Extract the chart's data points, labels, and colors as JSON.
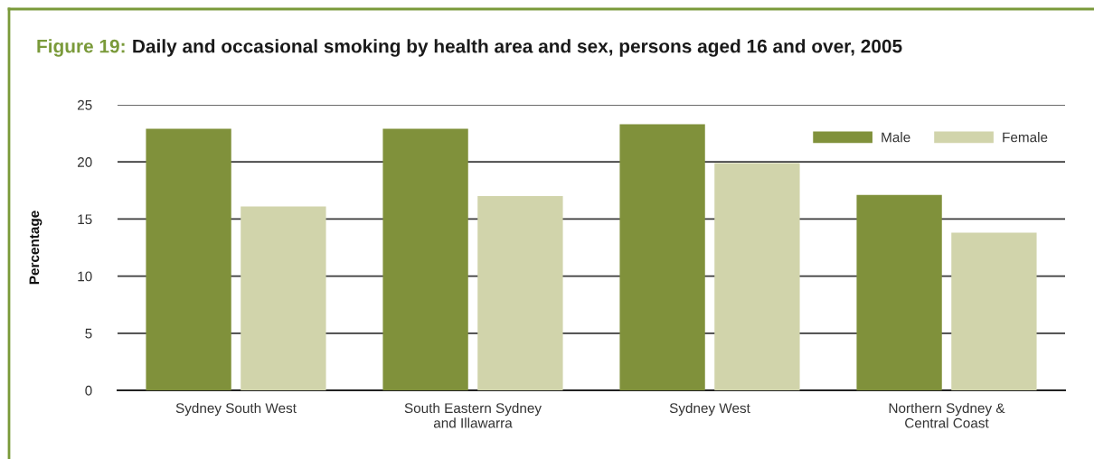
{
  "chart_data": {
    "type": "bar",
    "title": "Figure 19: Daily and occasional smoking by health area and sex, persons aged 16 and over, 2005",
    "ylabel": "Percentage",
    "categories": [
      "Sydney South West",
      "South Eastern Sydney\nand Illawarra",
      "Sydney West",
      "Northern Sydney &\nCentral Coast"
    ],
    "series": [
      {
        "name": "Male",
        "color": "#80913b",
        "values": [
          22.9,
          22.9,
          23.3,
          17.1
        ]
      },
      {
        "name": "Female",
        "color": "#d1d4ab",
        "values": [
          16.1,
          17.0,
          19.9,
          13.8
        ]
      }
    ],
    "ylim": [
      0,
      25
    ],
    "yticks": [
      0,
      5,
      10,
      15,
      20,
      25
    ],
    "grid": "y",
    "legend": "top right"
  }
}
